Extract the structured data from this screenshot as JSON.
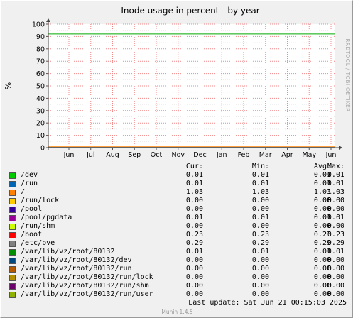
{
  "chart_data": {
    "type": "line",
    "title": "Inode usage in percent - by year",
    "ylabel": "%",
    "vendor": "RRDTOOL / TOBI OETIKER",
    "ylim": [
      0,
      100
    ],
    "yticks": [
      0,
      10,
      20,
      30,
      40,
      50,
      60,
      70,
      80,
      90,
      100
    ],
    "xticks": [
      "Jun",
      "Jul",
      "Aug",
      "Sep",
      "Oct",
      "Nov",
      "Dec",
      "Jan",
      "Feb",
      "Mar",
      "Apr",
      "May",
      "Jun"
    ],
    "warning_line": 92,
    "grid": true
  },
  "legend": {
    "headers": {
      "cur": "Cur:",
      "min": "Min:",
      "avg": "Avg:",
      "max": "Max:"
    },
    "rows": [
      {
        "name": "/dev",
        "color": "#00cc00",
        "cur": "0.01",
        "min": "0.01",
        "avg": "0.01",
        "max": "0.01"
      },
      {
        "name": "/run",
        "color": "#0066b3",
        "cur": "0.01",
        "min": "0.01",
        "avg": "0.01",
        "max": "0.01"
      },
      {
        "name": "/",
        "color": "#ff8000",
        "cur": "1.03",
        "min": "1.03",
        "avg": "1.03",
        "max": "1.03"
      },
      {
        "name": "/run/lock",
        "color": "#ffcc00",
        "cur": "0.00",
        "min": "0.00",
        "avg": "0.00",
        "max": "0.00"
      },
      {
        "name": "/pool",
        "color": "#330099",
        "cur": "0.00",
        "min": "0.00",
        "avg": "0.00",
        "max": "0.00"
      },
      {
        "name": "/pool/pgdata",
        "color": "#990099",
        "cur": "0.01",
        "min": "0.01",
        "avg": "0.01",
        "max": "0.01"
      },
      {
        "name": "/run/shm",
        "color": "#ccff00",
        "cur": "0.00",
        "min": "0.00",
        "avg": "0.00",
        "max": "0.00"
      },
      {
        "name": "/boot",
        "color": "#ff0000",
        "cur": "0.23",
        "min": "0.23",
        "avg": "0.23",
        "max": "0.23"
      },
      {
        "name": "/etc/pve",
        "color": "#808080",
        "cur": "0.29",
        "min": "0.29",
        "avg": "0.29",
        "max": "0.29"
      },
      {
        "name": "/var/lib/vz/root/80132",
        "color": "#008f00",
        "cur": "0.01",
        "min": "0.01",
        "avg": "0.01",
        "max": "0.01"
      },
      {
        "name": "/var/lib/vz/root/80132/dev",
        "color": "#00487d",
        "cur": "0.00",
        "min": "0.00",
        "avg": "0.00",
        "max": "0.00"
      },
      {
        "name": "/var/lib/vz/root/80132/run",
        "color": "#b35a00",
        "cur": "0.00",
        "min": "0.00",
        "avg": "0.00",
        "max": "0.00"
      },
      {
        "name": "/var/lib/vz/root/80132/run/lock",
        "color": "#b38f00",
        "cur": "0.00",
        "min": "0.00",
        "avg": "0.00",
        "max": "0.00"
      },
      {
        "name": "/var/lib/vz/root/80132/run/shm",
        "color": "#6b006b",
        "cur": "0.00",
        "min": "0.00",
        "avg": "0.00",
        "max": "0.00"
      },
      {
        "name": "/var/lib/vz/root/80132/run/user",
        "color": "#8fb300",
        "cur": "0.00",
        "min": "0.00",
        "avg": "0.00",
        "max": "0.00"
      }
    ]
  },
  "last_update": "Last update:  Sat Jun 21 00:15:03 2025",
  "version": "Munin 1.4.5"
}
